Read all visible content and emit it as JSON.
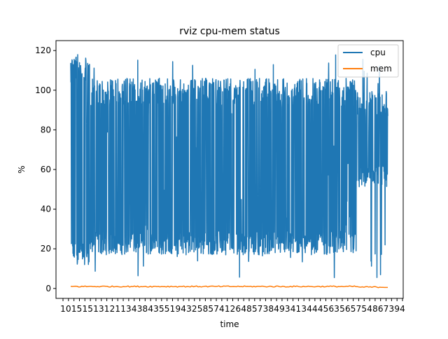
{
  "chart_data": {
    "type": "line",
    "title": "rviz cpu-mem status",
    "xlabel": "time",
    "ylabel": "%",
    "ylim": [
      -5,
      125
    ],
    "yticks": [
      0,
      20,
      40,
      60,
      80,
      100,
      120
    ],
    "x_tick_labels_note": "dense overlapping numeric labels",
    "x_tick_labels": [
      "1",
      "0",
      "1",
      "5",
      "1",
      "5",
      "1",
      "3",
      "1",
      "2",
      "1",
      "1",
      "3",
      "4",
      "3",
      "8",
      "4",
      "3",
      "5",
      "5",
      "1",
      "9",
      "4",
      "3",
      "2",
      "5",
      "8",
      "5",
      "7",
      "4",
      "1",
      "2",
      "6",
      "4",
      "8",
      "5",
      "7",
      "3",
      "8",
      "4",
      "9",
      "3",
      "4",
      "1",
      "3",
      "4",
      "4",
      "4",
      "5",
      "6",
      "3",
      "5",
      "6",
      "5",
      "7",
      "5",
      "4",
      "8",
      "6",
      "7",
      "3",
      "9",
      "4"
    ],
    "legend": {
      "position": "upper right",
      "entries": [
        "cpu",
        "mem"
      ]
    },
    "grid": false,
    "series": [
      {
        "name": "cpu",
        "color": "#1f77b4",
        "x_range": [
          0,
          1
        ],
        "y_range": [
          5,
          119
        ],
        "typical_band_low": 17,
        "typical_band_high": 106,
        "note": "rapidly oscillating signal filling most of the plot; narrower 50-100 band near the end"
      },
      {
        "name": "mem",
        "color": "#ff7f0e",
        "x_range": [
          0,
          1
        ],
        "y_range": [
          0,
          1.5
        ],
        "typical_value": 1,
        "note": "nearly flat line close to zero"
      }
    ]
  }
}
